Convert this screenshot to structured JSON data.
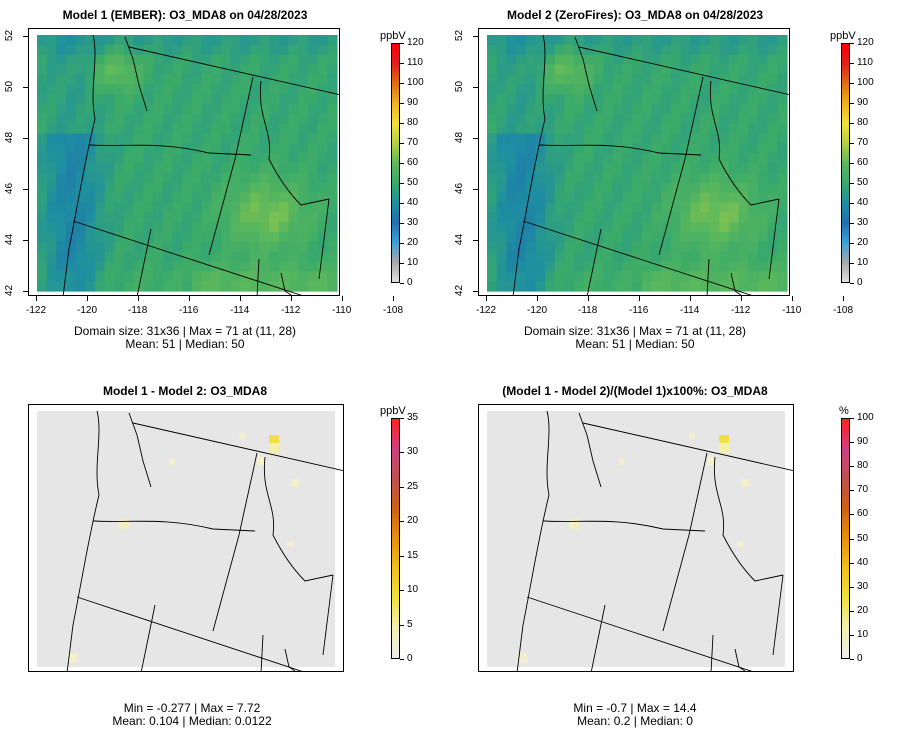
{
  "panels": [
    {
      "id": "p1",
      "title": "Model 1 (EMBER): O3_MDA8 on 04/28/2023",
      "stats_line1": "Domain size: 31x36 | Max = 71 at (11, 28)",
      "stats_line2": "Mean: 51 |  Median: 50",
      "colorbar_unit": "ppbV",
      "colorbar_ticks": [
        "120",
        "110",
        "100",
        "90",
        "80",
        "70",
        "60",
        "50",
        "40",
        "30",
        "20",
        "10",
        "0"
      ],
      "x_ticks": [
        "-122",
        "-120",
        "-118",
        "-116",
        "-114",
        "-112",
        "-110",
        "-108"
      ],
      "y_ticks": [
        "52",
        "50",
        "48",
        "46",
        "44",
        "42"
      ],
      "type": "concentration"
    },
    {
      "id": "p2",
      "title": "Model 2 (ZeroFires): O3_MDA8 on 04/28/2023",
      "stats_line1": "Domain size: 31x36 | Max = 71 at (11, 28)",
      "stats_line2": "Mean: 51 |  Median: 50",
      "colorbar_unit": "ppbV",
      "colorbar_ticks": [
        "120",
        "110",
        "100",
        "90",
        "80",
        "70",
        "60",
        "50",
        "40",
        "30",
        "20",
        "10",
        "0"
      ],
      "x_ticks": [
        "-122",
        "-120",
        "-118",
        "-116",
        "-114",
        "-112",
        "-110",
        "-108"
      ],
      "y_ticks": [
        "52",
        "50",
        "48",
        "46",
        "44",
        "42"
      ],
      "type": "concentration"
    },
    {
      "id": "p3",
      "title": "Model 1 - Model 2: O3_MDA8",
      "stats_line1": "Min = -0.277 | Max = 7.72",
      "stats_line2": "Mean: 0.104 |  Median: 0.0122",
      "colorbar_unit": "ppbV",
      "colorbar_ticks": [
        "35",
        "30",
        "25",
        "20",
        "15",
        "10",
        "5",
        "0"
      ],
      "type": "difference"
    },
    {
      "id": "p4",
      "title": "(Model 1 - Model 2)/(Model 1)x100%: O3_MDA8",
      "stats_line1": "Min = -0.7 | Max = 14.4",
      "stats_line2": "Mean: 0.2 |  Median: 0",
      "colorbar_unit": "%",
      "colorbar_ticks": [
        "100",
        "90",
        "80",
        "70",
        "60",
        "50",
        "40",
        "30",
        "20",
        "10",
        "0"
      ],
      "type": "difference"
    }
  ],
  "colors": {
    "conc_ramp": [
      "#e0e0e0",
      "#a8a8a8",
      "#3aa0d8",
      "#2070b0",
      "#1e8fa0",
      "#3aaa6a",
      "#5cb85c",
      "#b8d040",
      "#f0e040",
      "#f0b020",
      "#e07010",
      "#e02020",
      "#ff0000"
    ],
    "diff_ramp": [
      "#ececec",
      "#f4f0b0",
      "#f0e040",
      "#f0c020",
      "#e89010",
      "#d06010",
      "#c05050",
      "#d04080",
      "#ff2020"
    ],
    "background_gray": "#e6e6e6"
  }
}
